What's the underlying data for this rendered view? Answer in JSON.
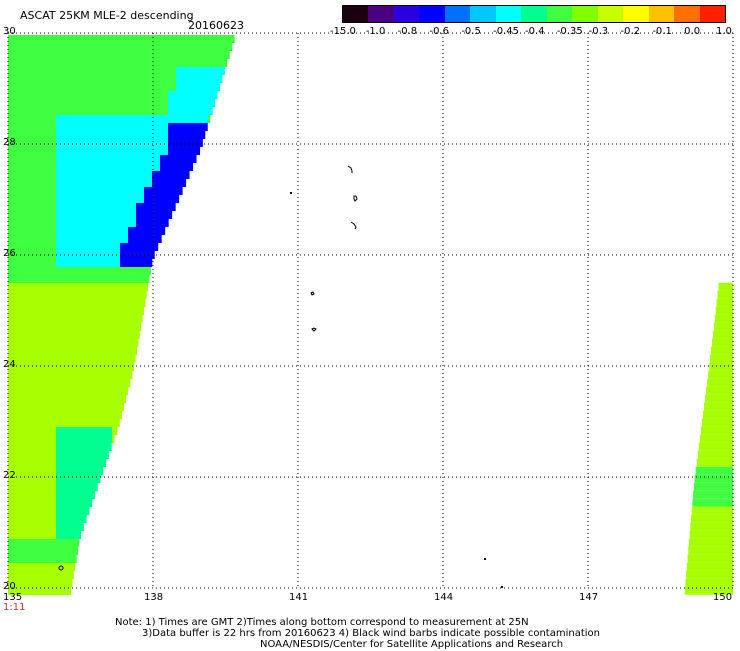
{
  "header": {
    "title": "ASCAT 25KM MLE-2 descending",
    "date": "20160623"
  },
  "colorbar": {
    "labels": [
      "-15.0",
      "-1.0",
      "-0.8",
      "-0.6",
      "-0.5",
      "-0.45",
      "-0.4",
      "-0.35",
      "-0.3",
      "-0.2",
      "-0.1",
      "0.0",
      "1.0"
    ],
    "colors": [
      "#1a0010",
      "#4b0082",
      "#2a00e0",
      "#0000ff",
      "#0070ff",
      "#00c8ff",
      "#00ffff",
      "#00ff90",
      "#40ff40",
      "#80ff00",
      "#c8ff00",
      "#ffff00",
      "#ffc000",
      "#ff7000",
      "#ff2000"
    ]
  },
  "axes": {
    "lat_labels": [
      "30",
      "28",
      "26",
      "24",
      "22",
      "20"
    ],
    "lon_labels": [
      "135",
      "138",
      "141",
      "144",
      "147",
      "150"
    ],
    "lat_range": [
      20,
      30
    ],
    "lon_range": [
      135,
      150
    ],
    "grid": "dotted"
  },
  "time_label": "1:11",
  "notes": {
    "line1": "Note: 1) Times are GMT 2)Times along bottom correspond to measurement at 25N",
    "line2": "3)Data buffer is 22 hrs from 20160623 4) Black wind barbs indicate possible contamination",
    "line3": "NOAA/NESDIS/Center for Satellite Applications and Research"
  },
  "swaths": {
    "west_edge": [
      [
        30,
        139.7
      ],
      [
        28,
        139.0
      ],
      [
        26,
        138.0
      ],
      [
        25,
        137.8
      ],
      [
        24,
        137.6
      ],
      [
        23,
        137.3
      ],
      [
        22,
        136.9
      ],
      [
        21,
        136.5
      ],
      [
        20,
        136.3
      ]
    ],
    "east_edge": [
      [
        25.5,
        149.7
      ],
      [
        24,
        149.5
      ],
      [
        22,
        149.2
      ],
      [
        20,
        149.0
      ]
    ],
    "field_colors": {
      "cyan": "#00ffff",
      "deep_blue": "#0000ff",
      "green": "#40ff40",
      "yellow_green": "#a8ff00",
      "sea_green": "#00ff90"
    }
  }
}
